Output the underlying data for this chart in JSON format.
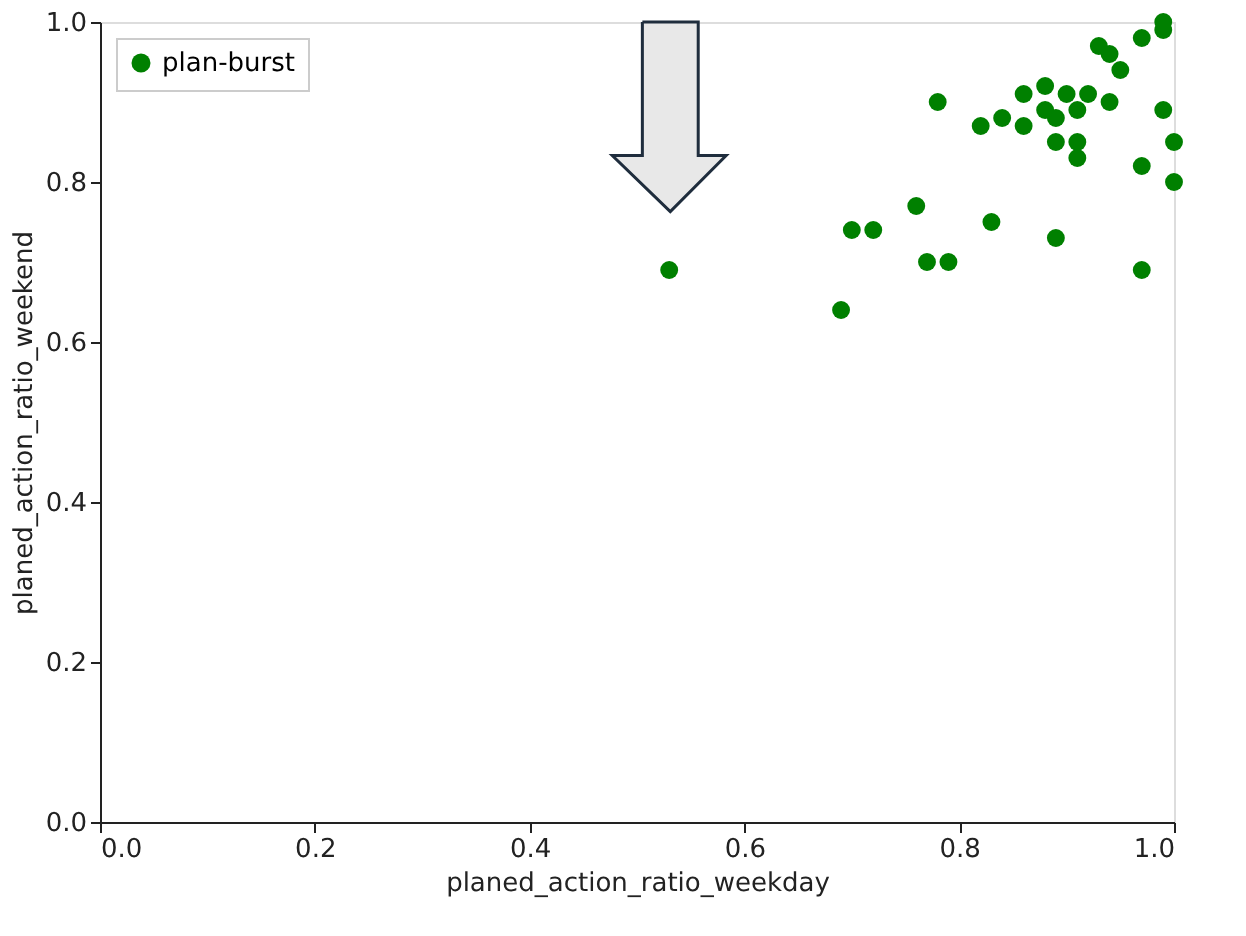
{
  "chart_data": {
    "type": "scatter",
    "xlabel": "planed_action_ratio_weekday",
    "ylabel": "planed_action_ratio_weekend",
    "series": [
      {
        "name": "plan-burst",
        "color": "#008000",
        "x": [
          0.53,
          0.69,
          0.7,
          0.72,
          0.76,
          0.77,
          0.79,
          0.78,
          0.83,
          0.82,
          0.84,
          0.86,
          0.86,
          0.88,
          0.89,
          0.88,
          0.9,
          0.89,
          0.91,
          0.89,
          0.91,
          0.91,
          0.92,
          0.94,
          0.93,
          0.94,
          0.95,
          0.97,
          0.99,
          0.99,
          0.97,
          0.97,
          0.99,
          1.0,
          1.0
        ],
        "values": [
          0.69,
          0.64,
          0.74,
          0.74,
          0.77,
          0.7,
          0.7,
          0.9,
          0.75,
          0.87,
          0.88,
          0.87,
          0.91,
          0.92,
          0.73,
          0.89,
          0.91,
          0.88,
          0.89,
          0.85,
          0.85,
          0.83,
          0.91,
          0.9,
          0.97,
          0.96,
          0.94,
          0.98,
          0.99,
          1.0,
          0.82,
          0.69,
          0.89,
          0.85,
          0.8
        ]
      }
    ],
    "xlim": [
      0,
      1
    ],
    "ylim": [
      0,
      1
    ],
    "xticks": [
      {
        "value": 0,
        "label": "0.0"
      },
      {
        "value": 0.2,
        "label": "0.2"
      },
      {
        "value": 0.4,
        "label": "0.4"
      },
      {
        "value": 0.6,
        "label": "0.6"
      },
      {
        "value": 0.8,
        "label": "0.8"
      },
      {
        "value": 1,
        "label": "1.0"
      }
    ],
    "yticks": [
      {
        "value": 0,
        "label": "0.0"
      },
      {
        "value": 0.2,
        "label": "0.2"
      },
      {
        "value": 0.4,
        "label": "0.4"
      },
      {
        "value": 0.6,
        "label": "0.6"
      },
      {
        "value": 0.8,
        "label": "0.8"
      },
      {
        "value": 1,
        "label": "1.0"
      }
    ],
    "marker": "circle",
    "legend": "top left",
    "grid": false
  }
}
